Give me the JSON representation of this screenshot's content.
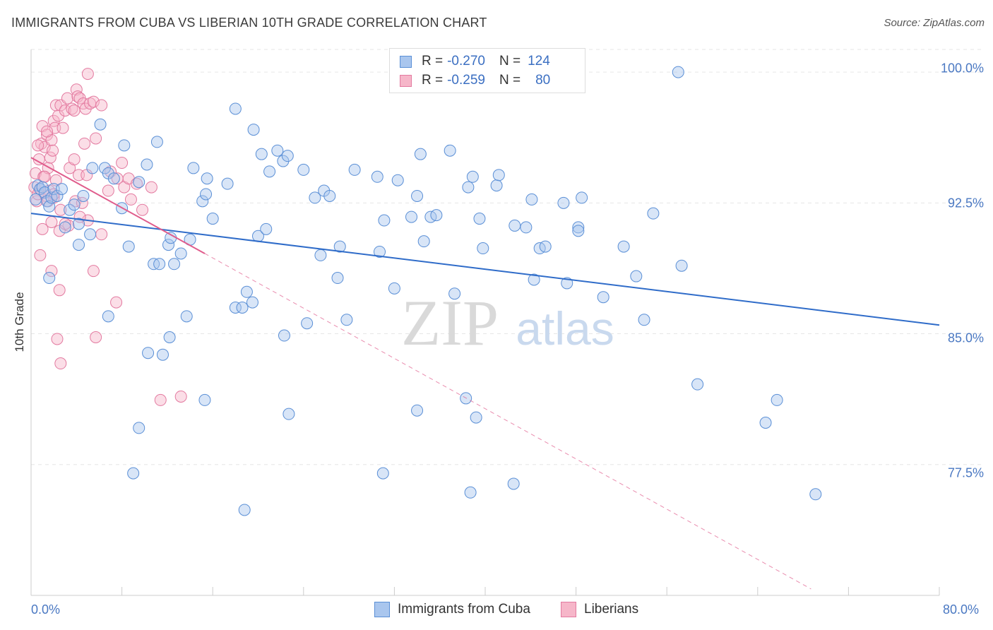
{
  "title": "IMMIGRANTS FROM CUBA VS LIBERIAN 10TH GRADE CORRELATION CHART",
  "source": "Source: ZipAtlas.com",
  "watermark": {
    "zip": "ZIP",
    "atlas": "atlas"
  },
  "stats": {
    "cuba": {
      "r_label": "R =",
      "r_value": "-0.270",
      "n_label": "N =",
      "n_value": "124"
    },
    "liberia": {
      "r_label": "R =",
      "r_value": "-0.259",
      "n_label": "N =",
      "n_value": "80"
    }
  },
  "colors": {
    "cuba_fill": "#a9c6ee",
    "cuba_stroke": "#5a8fd6",
    "cuba_line": "#2f6cc9",
    "liberia_fill": "#f6b6c9",
    "liberia_stroke": "#e37aa0",
    "liberia_line": "#e05c8c",
    "grid": "#e6e6e6",
    "tick_text": "#4a78c2"
  },
  "chart_data": {
    "type": "scatter",
    "title": "IMMIGRANTS FROM CUBA VS LIBERIAN 10TH GRADE CORRELATION CHART",
    "xlabel": "",
    "ylabel": "10th Grade",
    "xlim": [
      0,
      80
    ],
    "ylim": [
      70.0,
      101.3
    ],
    "x_tick_labels": [
      "0.0%",
      "80.0%"
    ],
    "y_ticks": [
      77.5,
      85.0,
      92.5,
      100.0
    ],
    "y_tick_labels": [
      "77.5%",
      "85.0%",
      "92.5%",
      "100.0%"
    ],
    "grid": true,
    "legend_position": "bottom-center",
    "series": [
      {
        "name": "Immigrants from Cuba",
        "r": -0.27,
        "n": 124,
        "trend": {
          "x": [
            0,
            80
          ],
          "y": [
            91.9,
            85.5
          ]
        },
        "points": [
          [
            0.4,
            92.7
          ],
          [
            0.6,
            93.5
          ],
          [
            0.8,
            93.3
          ],
          [
            1.0,
            93.4
          ],
          [
            1.2,
            93.1
          ],
          [
            1.4,
            92.6
          ],
          [
            1.6,
            92.3
          ],
          [
            1.8,
            92.8
          ],
          [
            2.0,
            93.3
          ],
          [
            2.3,
            92.9
          ],
          [
            2.7,
            93.3
          ],
          [
            3.0,
            91.1
          ],
          [
            3.4,
            92.1
          ],
          [
            3.8,
            92.4
          ],
          [
            4.2,
            91.3
          ],
          [
            4.6,
            92.9
          ],
          [
            5.2,
            90.7
          ],
          [
            1.6,
            88.2
          ],
          [
            4.2,
            90.1
          ],
          [
            5.4,
            94.5
          ],
          [
            6.1,
            97.0
          ],
          [
            6.5,
            94.5
          ],
          [
            6.8,
            94.2
          ],
          [
            7.3,
            93.9
          ],
          [
            6.8,
            86.0
          ],
          [
            8.2,
            95.8
          ],
          [
            8.0,
            92.2
          ],
          [
            8.6,
            90.0
          ],
          [
            9.5,
            93.7
          ],
          [
            10.2,
            94.7
          ],
          [
            10.8,
            89.0
          ],
          [
            11.3,
            89.0
          ],
          [
            11.1,
            96.0
          ],
          [
            12.1,
            90.1
          ],
          [
            12.3,
            90.5
          ],
          [
            12.6,
            89.0
          ],
          [
            13.2,
            89.6
          ],
          [
            13.7,
            86.0
          ],
          [
            14.0,
            90.4
          ],
          [
            10.3,
            83.9
          ],
          [
            11.6,
            83.8
          ],
          [
            12.2,
            84.8
          ],
          [
            9.5,
            79.6
          ],
          [
            9.0,
            77.0
          ],
          [
            15.1,
            92.6
          ],
          [
            14.3,
            94.5
          ],
          [
            15.4,
            93.0
          ],
          [
            16.0,
            91.6
          ],
          [
            15.5,
            93.9
          ],
          [
            17.3,
            93.6
          ],
          [
            15.3,
            81.2
          ],
          [
            18.0,
            86.5
          ],
          [
            18.6,
            86.5
          ],
          [
            19.0,
            87.4
          ],
          [
            19.5,
            86.8
          ],
          [
            20.0,
            90.6
          ],
          [
            20.7,
            91.0
          ],
          [
            18.0,
            97.9
          ],
          [
            19.6,
            96.7
          ],
          [
            20.3,
            95.3
          ],
          [
            21.7,
            95.5
          ],
          [
            22.2,
            94.9
          ],
          [
            22.6,
            95.2
          ],
          [
            21.0,
            94.3
          ],
          [
            24.0,
            94.4
          ],
          [
            25.0,
            92.8
          ],
          [
            25.8,
            93.2
          ],
          [
            26.3,
            92.9
          ],
          [
            25.5,
            89.5
          ],
          [
            27.0,
            88.2
          ],
          [
            27.2,
            90.0
          ],
          [
            24.3,
            85.6
          ],
          [
            22.3,
            84.9
          ],
          [
            27.8,
            85.8
          ],
          [
            28.5,
            94.4
          ],
          [
            30.5,
            94.0
          ],
          [
            30.7,
            89.7
          ],
          [
            31.1,
            91.5
          ],
          [
            32.0,
            87.6
          ],
          [
            32.3,
            93.8
          ],
          [
            31.0,
            77.0
          ],
          [
            22.7,
            80.4
          ],
          [
            18.8,
            74.9
          ],
          [
            33.5,
            91.7
          ],
          [
            34.0,
            92.9
          ],
          [
            34.3,
            95.3
          ],
          [
            34.6,
            90.3
          ],
          [
            35.2,
            91.7
          ],
          [
            35.7,
            91.8
          ],
          [
            34.0,
            80.6
          ],
          [
            36.9,
            95.5
          ],
          [
            37.3,
            87.3
          ],
          [
            38.5,
            93.4
          ],
          [
            38.9,
            94.0
          ],
          [
            38.3,
            81.3
          ],
          [
            39.2,
            80.2
          ],
          [
            38.7,
            75.9
          ],
          [
            39.8,
            89.9
          ],
          [
            41.0,
            93.5
          ],
          [
            41.2,
            94.1
          ],
          [
            39.5,
            91.6
          ],
          [
            42.6,
            91.2
          ],
          [
            43.6,
            91.1
          ],
          [
            42.5,
            76.4
          ],
          [
            44.1,
            92.7
          ],
          [
            44.3,
            88.1
          ],
          [
            44.8,
            89.9
          ],
          [
            45.3,
            90.0
          ],
          [
            46.9,
            92.5
          ],
          [
            47.2,
            87.9
          ],
          [
            48.2,
            91.1
          ],
          [
            48.5,
            92.8
          ],
          [
            48.2,
            90.9
          ],
          [
            50.4,
            87.1
          ],
          [
            52.2,
            90.0
          ],
          [
            53.3,
            88.3
          ],
          [
            54.0,
            85.8
          ],
          [
            54.8,
            91.9
          ],
          [
            57.3,
            88.9
          ],
          [
            57.0,
            100.0
          ],
          [
            58.7,
            82.1
          ],
          [
            64.7,
            79.9
          ],
          [
            65.7,
            81.2
          ],
          [
            69.1,
            75.8
          ]
        ]
      },
      {
        "name": "Liberians",
        "r": -0.259,
        "n": 80,
        "trend_solid": {
          "x": [
            0,
            15.3
          ],
          "y": [
            95.1,
            89.6
          ]
        },
        "trend_dashed": {
          "x": [
            15.3,
            80
          ],
          "y": [
            89.6,
            66.3
          ]
        },
        "points": [
          [
            0.3,
            93.4
          ],
          [
            0.4,
            94.2
          ],
          [
            0.5,
            92.6
          ],
          [
            0.6,
            93.0
          ],
          [
            0.7,
            95.0
          ],
          [
            0.8,
            93.3
          ],
          [
            0.9,
            95.9
          ],
          [
            1.0,
            96.9
          ],
          [
            1.1,
            94.0
          ],
          [
            1.2,
            95.7
          ],
          [
            1.3,
            92.9
          ],
          [
            1.4,
            96.4
          ],
          [
            1.5,
            94.5
          ],
          [
            1.6,
            93.2
          ],
          [
            1.7,
            95.1
          ],
          [
            1.8,
            96.1
          ],
          [
            1.9,
            95.5
          ],
          [
            2.0,
            97.2
          ],
          [
            2.1,
            96.8
          ],
          [
            2.2,
            98.1
          ],
          [
            2.4,
            97.5
          ],
          [
            2.6,
            98.1
          ],
          [
            2.8,
            96.8
          ],
          [
            3.0,
            97.8
          ],
          [
            3.2,
            98.5
          ],
          [
            3.4,
            94.5
          ],
          [
            3.6,
            97.9
          ],
          [
            3.8,
            97.8
          ],
          [
            4.0,
            99.0
          ],
          [
            4.1,
            98.6
          ],
          [
            4.3,
            98.5
          ],
          [
            4.6,
            98.2
          ],
          [
            4.8,
            97.9
          ],
          [
            5.0,
            99.9
          ],
          [
            5.2,
            98.2
          ],
          [
            5.5,
            98.3
          ],
          [
            4.2,
            94.1
          ],
          [
            4.7,
            95.9
          ],
          [
            3.8,
            95.0
          ],
          [
            4.9,
            94.1
          ],
          [
            5.7,
            96.2
          ],
          [
            6.2,
            98.1
          ],
          [
            6.2,
            90.7
          ],
          [
            6.8,
            93.2
          ],
          [
            7.0,
            94.3
          ],
          [
            7.6,
            93.9
          ],
          [
            8.0,
            94.8
          ],
          [
            8.2,
            93.4
          ],
          [
            8.6,
            93.9
          ],
          [
            9.3,
            93.6
          ],
          [
            9.8,
            92.1
          ],
          [
            10.6,
            93.4
          ],
          [
            11.4,
            81.2
          ],
          [
            13.2,
            81.4
          ],
          [
            1.5,
            92.6
          ],
          [
            2.0,
            92.8
          ],
          [
            2.6,
            92.1
          ],
          [
            3.3,
            91.2
          ],
          [
            3.9,
            92.6
          ],
          [
            4.5,
            92.5
          ],
          [
            5.0,
            91.5
          ],
          [
            1.0,
            91.0
          ],
          [
            1.8,
            91.4
          ],
          [
            2.5,
            90.9
          ],
          [
            3.0,
            91.3
          ],
          [
            0.8,
            89.5
          ],
          [
            1.8,
            88.6
          ],
          [
            2.5,
            87.5
          ],
          [
            2.3,
            84.7
          ],
          [
            2.6,
            83.3
          ],
          [
            5.5,
            88.6
          ],
          [
            5.7,
            84.8
          ],
          [
            7.5,
            86.8
          ],
          [
            8.8,
            92.7
          ],
          [
            4.3,
            91.7
          ],
          [
            2.0,
            93.0
          ],
          [
            1.2,
            94.0
          ],
          [
            0.6,
            95.8
          ],
          [
            1.4,
            96.6
          ],
          [
            2.2,
            93.8
          ]
        ]
      }
    ]
  }
}
